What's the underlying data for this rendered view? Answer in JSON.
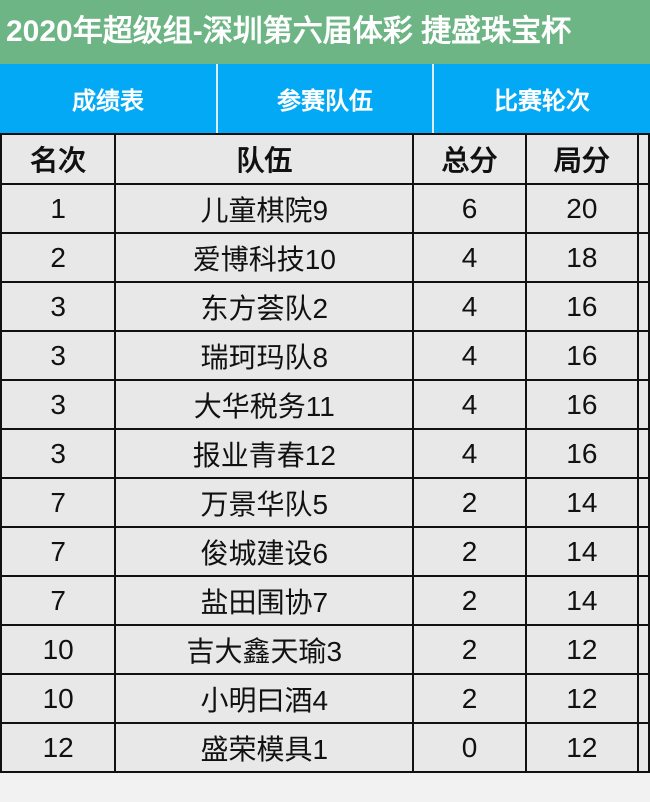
{
  "title": "2020年超级组-深圳第六届体彩 捷盛珠宝杯",
  "colors": {
    "title_bg": "#6db585",
    "tab_bg": "#03a9f4",
    "table_bg": "#e8e8e8"
  },
  "tabs": [
    {
      "label": "成绩表"
    },
    {
      "label": "参赛队伍"
    },
    {
      "label": "比赛轮次"
    }
  ],
  "table": {
    "headers": [
      "名次",
      "队伍",
      "总分",
      "局分"
    ],
    "rows": [
      [
        "1",
        "儿童棋院9",
        "6",
        "20"
      ],
      [
        "2",
        "爱博科技10",
        "4",
        "18"
      ],
      [
        "3",
        "东方荟队2",
        "4",
        "16"
      ],
      [
        "3",
        "瑞珂玛队8",
        "4",
        "16"
      ],
      [
        "3",
        "大华税务11",
        "4",
        "16"
      ],
      [
        "3",
        "报业青春12",
        "4",
        "16"
      ],
      [
        "7",
        "万景华队5",
        "2",
        "14"
      ],
      [
        "7",
        "俊城建设6",
        "2",
        "14"
      ],
      [
        "7",
        "盐田围协7",
        "2",
        "14"
      ],
      [
        "10",
        "吉大鑫天瑜3",
        "2",
        "12"
      ],
      [
        "10",
        "小明曰酒4",
        "2",
        "12"
      ],
      [
        "12",
        "盛荣模具1",
        "0",
        "12"
      ]
    ]
  }
}
